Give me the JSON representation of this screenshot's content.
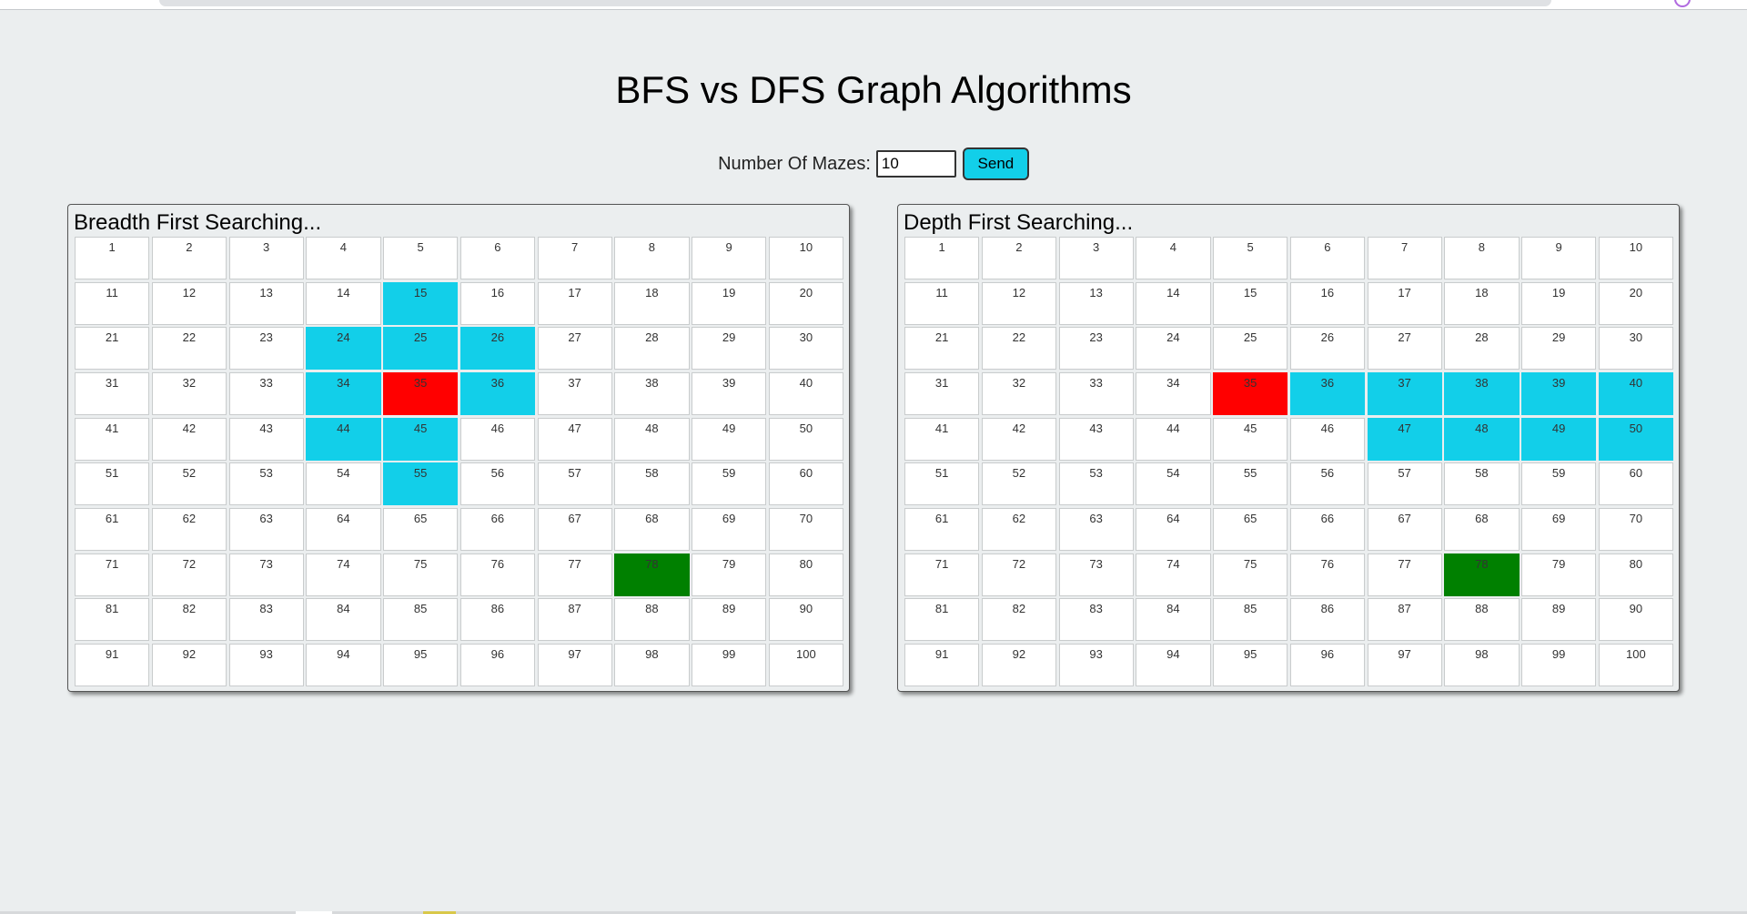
{
  "title": "BFS vs DFS Graph Algorithms",
  "controls": {
    "label": "Number Of Mazes:",
    "input_value": "10",
    "send_label": "Send"
  },
  "colors": {
    "visited": "#12cfe9",
    "start": "#ff0000",
    "goal": "#008000",
    "unvisited": "#ffffff"
  },
  "grid": {
    "rows": 10,
    "cols": 10
  },
  "panels": [
    {
      "id": "bfs",
      "title": "Breadth First Searching...",
      "start": 35,
      "goal": 78,
      "visited": [
        15,
        24,
        25,
        26,
        34,
        36,
        44,
        45,
        55
      ]
    },
    {
      "id": "dfs",
      "title": "Depth First Searching...",
      "start": 35,
      "goal": 78,
      "visited": [
        36,
        37,
        38,
        39,
        40,
        47,
        48,
        49,
        50
      ]
    }
  ]
}
